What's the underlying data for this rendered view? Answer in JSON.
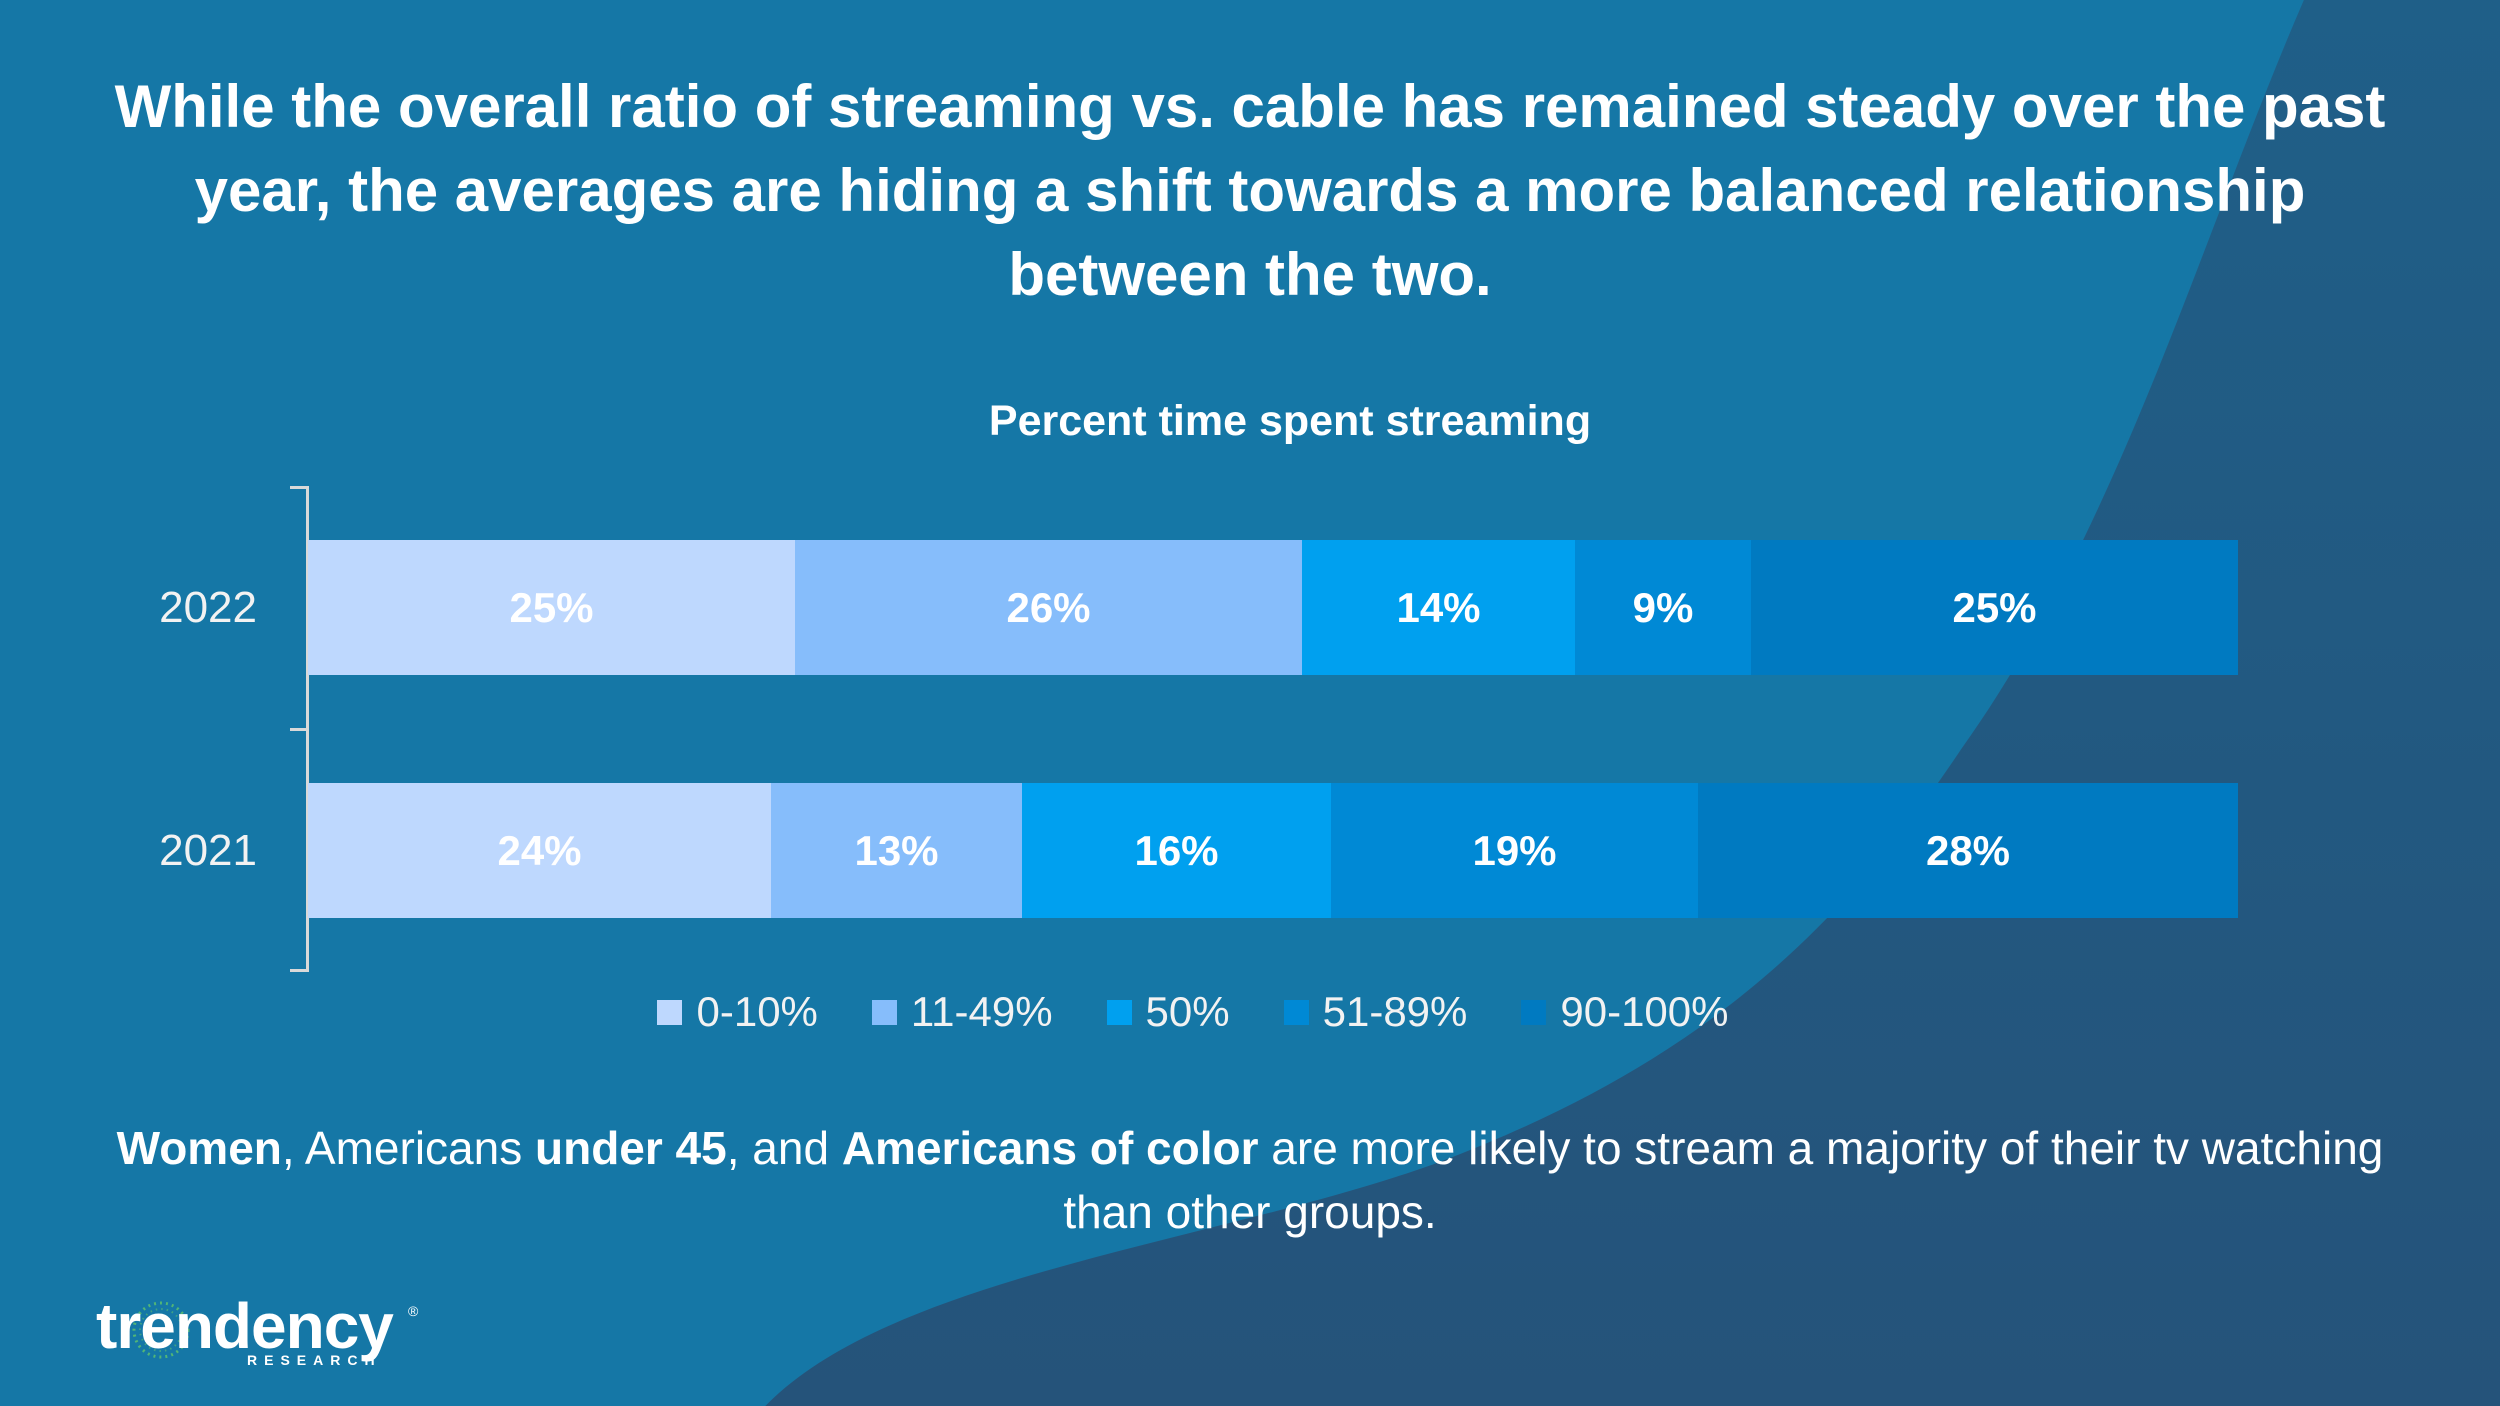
{
  "title": "While the overall ratio of streaming vs. cable has remained steady over the past year, the averages are hiding a shift towards a more balanced relationship between the two.",
  "chart_data": {
    "type": "bar",
    "orientation": "horizontal",
    "stacked": true,
    "percent_stacked": true,
    "title": "Percent time spent streaming",
    "categories": [
      "2022",
      "2021"
    ],
    "series": [
      {
        "name": "0-10%",
        "values": [
          25,
          24
        ],
        "color": "#bed8fe"
      },
      {
        "name": "11-49%",
        "values": [
          26,
          13
        ],
        "color": "#86bdfb"
      },
      {
        "name": "50%",
        "values": [
          14,
          16
        ],
        "color": "#00a0ef"
      },
      {
        "name": "51-89%",
        "values": [
          9,
          19
        ],
        "color": "#0089d5"
      },
      {
        "name": "90-100%",
        "values": [
          25,
          28
        ],
        "color": "#007ac1"
      }
    ],
    "value_suffix": "%",
    "data_labels": true,
    "legend": "bottom",
    "grid": false
  },
  "footnote": {
    "parts": [
      {
        "text": "Women",
        "bold": true
      },
      {
        "text": ", Americans ",
        "bold": false
      },
      {
        "text": "under 45",
        "bold": true
      },
      {
        "text": ", and ",
        "bold": false
      },
      {
        "text": "Americans of color",
        "bold": true
      },
      {
        "text": " are more likely to stream a majority of their tv watching than other groups.",
        "bold": false
      }
    ]
  },
  "logo": {
    "wordmark": "trendency",
    "registered": "®",
    "subtitle": "RESEARCH"
  },
  "colors": {
    "background": "#1577a6",
    "background_dark": "#25537a",
    "text": "#ffffff",
    "axis": "#d9d9d9",
    "logo_accent": "#5cc06f"
  }
}
